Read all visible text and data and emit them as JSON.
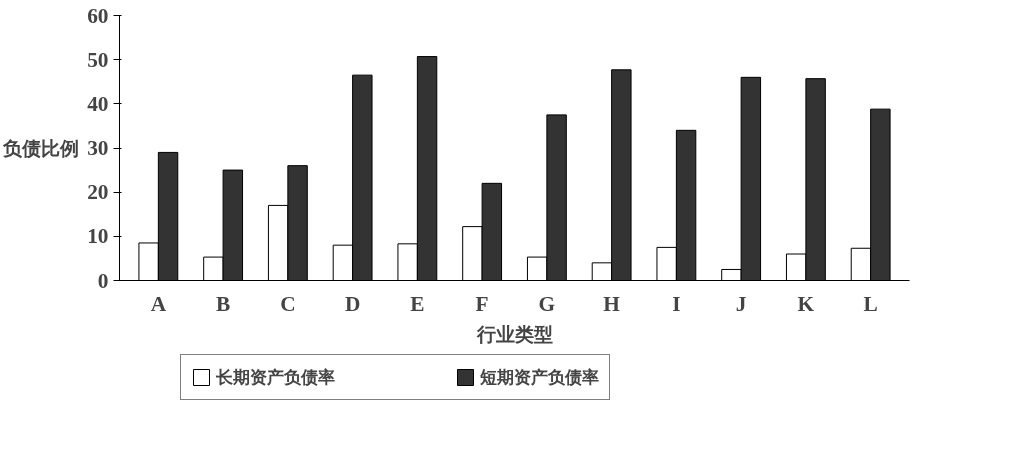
{
  "chart_data": {
    "type": "bar",
    "xlabel": "行业类型",
    "ylabel": "负债比例",
    "categories": [
      "A",
      "B",
      "C",
      "D",
      "E",
      "F",
      "G",
      "H",
      "I",
      "J",
      "K",
      "L"
    ],
    "series": [
      {
        "name": "长期资产负债率",
        "color": "#ffffff",
        "values": [
          8.5,
          5.3,
          17,
          8,
          8.3,
          12.2,
          5.3,
          4,
          7.5,
          2.5,
          6,
          7.3
        ]
      },
      {
        "name": "短期资产负债率",
        "color": "#333333",
        "values": [
          29,
          25,
          26,
          46.5,
          50.7,
          22,
          37.5,
          47.7,
          34,
          46,
          45.7,
          38.8
        ]
      }
    ],
    "ylim": [
      0,
      60
    ],
    "yticks": [
      0,
      10,
      20,
      30,
      40,
      50,
      60
    ],
    "grid": false,
    "legend": "bottom"
  }
}
